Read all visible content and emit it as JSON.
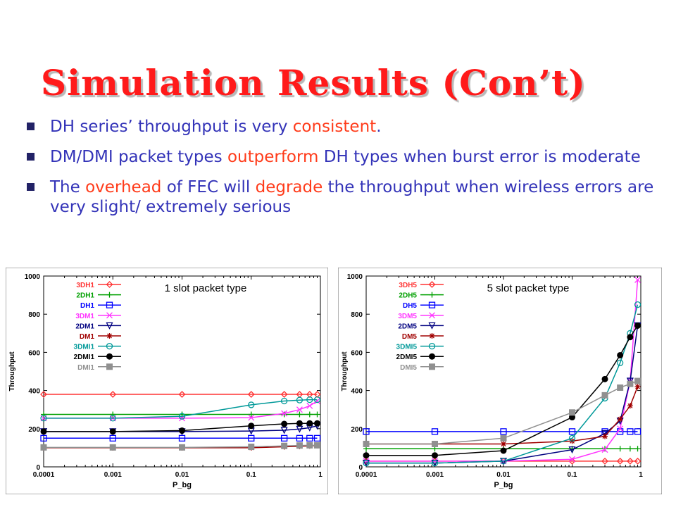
{
  "slide": {
    "title": "Simulation Results (Con’t)",
    "bullets": [
      {
        "segments": [
          {
            "text": "DH series’ throughput is very ",
            "hl": false
          },
          {
            "text": "consistent",
            "hl": true
          },
          {
            "text": ".",
            "hl": false
          }
        ]
      },
      {
        "segments": [
          {
            "text": "DM/DMI packet types ",
            "hl": false
          },
          {
            "text": "outperform",
            "hl": true
          },
          {
            "text": " DH types when burst error is moderate",
            "hl": false
          }
        ]
      },
      {
        "segments": [
          {
            "text": "The ",
            "hl": false
          },
          {
            "text": "overhead",
            "hl": true
          },
          {
            "text": " of FEC will ",
            "hl": false
          },
          {
            "text": "degrade",
            "hl": true
          },
          {
            "text": " the throughput when wireless errors are very slight/ extremely serious",
            "hl": false
          }
        ]
      }
    ]
  },
  "colors": {
    "text": "#3333b8",
    "highlight": "#ff3b1a",
    "title": "#ff1a1a"
  },
  "chart_data": [
    {
      "type": "line",
      "annotation": "1 slot packet type",
      "xlabel": "P_bg",
      "ylabel": "Throughput",
      "x_scale": "log",
      "xlim": [
        0.0001,
        1
      ],
      "ylim": [
        0,
        1000
      ],
      "x_ticks": [
        0.0001,
        0.001,
        0.01,
        0.1,
        1
      ],
      "x_tick_labels": [
        "0.0001",
        "0.001",
        "0.01",
        "0.1",
        "1"
      ],
      "y_ticks": [
        0,
        200,
        400,
        600,
        800,
        1000
      ],
      "y_tick_labels": [
        "0",
        "200",
        "400",
        "600",
        "800",
        "1000"
      ],
      "x": [
        0.0001,
        0.001,
        0.01,
        0.1,
        0.3,
        0.5,
        0.7,
        0.9
      ],
      "legend_position": "top-left",
      "series": [
        {
          "name": "3DH1",
          "color": "#ff3333",
          "marker": "diamond",
          "values": [
            380,
            380,
            380,
            380,
            380,
            380,
            380,
            380
          ]
        },
        {
          "name": "2DH1",
          "color": "#00a000",
          "marker": "plus",
          "values": [
            275,
            275,
            275,
            275,
            275,
            275,
            275,
            275
          ]
        },
        {
          "name": "DH1",
          "color": "#0000ff",
          "marker": "square",
          "values": [
            150,
            150,
            150,
            150,
            150,
            150,
            150,
            150
          ]
        },
        {
          "name": "3DM1",
          "color": "#ff33ff",
          "marker": "x",
          "values": [
            255,
            255,
            255,
            258,
            280,
            300,
            320,
            345
          ]
        },
        {
          "name": "2DM1",
          "color": "#000080",
          "marker": "triangle-down",
          "values": [
            185,
            185,
            185,
            188,
            192,
            198,
            205,
            215
          ]
        },
        {
          "name": "DM1",
          "color": "#a00000",
          "marker": "asterisk",
          "values": [
            100,
            100,
            100,
            100,
            105,
            108,
            110,
            112
          ]
        },
        {
          "name": "3DMI1",
          "color": "#009999",
          "marker": "circle",
          "values": [
            255,
            255,
            265,
            325,
            345,
            350,
            352,
            352
          ]
        },
        {
          "name": "2DMI1",
          "color": "#000000",
          "marker": "filled-circle",
          "values": [
            185,
            185,
            190,
            215,
            225,
            228,
            228,
            228
          ]
        },
        {
          "name": "DMI1",
          "color": "#909090",
          "marker": "filled-square",
          "values": [
            102,
            102,
            102,
            105,
            110,
            112,
            113,
            113
          ]
        }
      ]
    },
    {
      "type": "line",
      "annotation": "5 slot packet type",
      "xlabel": "P_bg",
      "ylabel": "Throughput",
      "x_scale": "log",
      "xlim": [
        0.0001,
        1
      ],
      "ylim": [
        0,
        1000
      ],
      "x_ticks": [
        0.0001,
        0.001,
        0.01,
        0.1,
        1
      ],
      "x_tick_labels": [
        "0.0001",
        "0.001",
        "0.01",
        "0.1",
        "1"
      ],
      "y_ticks": [
        0,
        200,
        400,
        600,
        800,
        1000
      ],
      "y_tick_labels": [
        "0",
        "200",
        "400",
        "600",
        "800",
        "1000"
      ],
      "x": [
        0.0001,
        0.001,
        0.01,
        0.1,
        0.3,
        0.5,
        0.7,
        0.9
      ],
      "legend_position": "top-left",
      "series": [
        {
          "name": "3DH5",
          "color": "#ff3333",
          "marker": "diamond",
          "values": [
            30,
            30,
            30,
            30,
            30,
            30,
            30,
            30
          ]
        },
        {
          "name": "2DH5",
          "color": "#00a000",
          "marker": "plus",
          "values": [
            95,
            95,
            95,
            95,
            95,
            95,
            95,
            95
          ]
        },
        {
          "name": "DH5",
          "color": "#0000ff",
          "marker": "square",
          "values": [
            185,
            185,
            185,
            185,
            185,
            185,
            185,
            185
          ]
        },
        {
          "name": "3DM5",
          "color": "#ff33ff",
          "marker": "x",
          "values": [
            30,
            30,
            30,
            40,
            90,
            200,
            450,
            980
          ]
        },
        {
          "name": "2DM5",
          "color": "#000080",
          "marker": "triangle-down",
          "values": [
            20,
            20,
            30,
            90,
            175,
            240,
            450,
            740
          ]
        },
        {
          "name": "DM5",
          "color": "#a00000",
          "marker": "asterisk",
          "values": [
            120,
            120,
            120,
            135,
            160,
            250,
            320,
            420
          ]
        },
        {
          "name": "3DMI5",
          "color": "#009999",
          "marker": "circle",
          "values": [
            20,
            20,
            30,
            150,
            360,
            545,
            700,
            850
          ]
        },
        {
          "name": "2DMI5",
          "color": "#000000",
          "marker": "filled-circle",
          "values": [
            60,
            60,
            85,
            260,
            460,
            585,
            680,
            740
          ]
        },
        {
          "name": "DMI5",
          "color": "#909090",
          "marker": "filled-square",
          "values": [
            120,
            120,
            150,
            285,
            375,
            415,
            435,
            450
          ]
        }
      ]
    }
  ]
}
